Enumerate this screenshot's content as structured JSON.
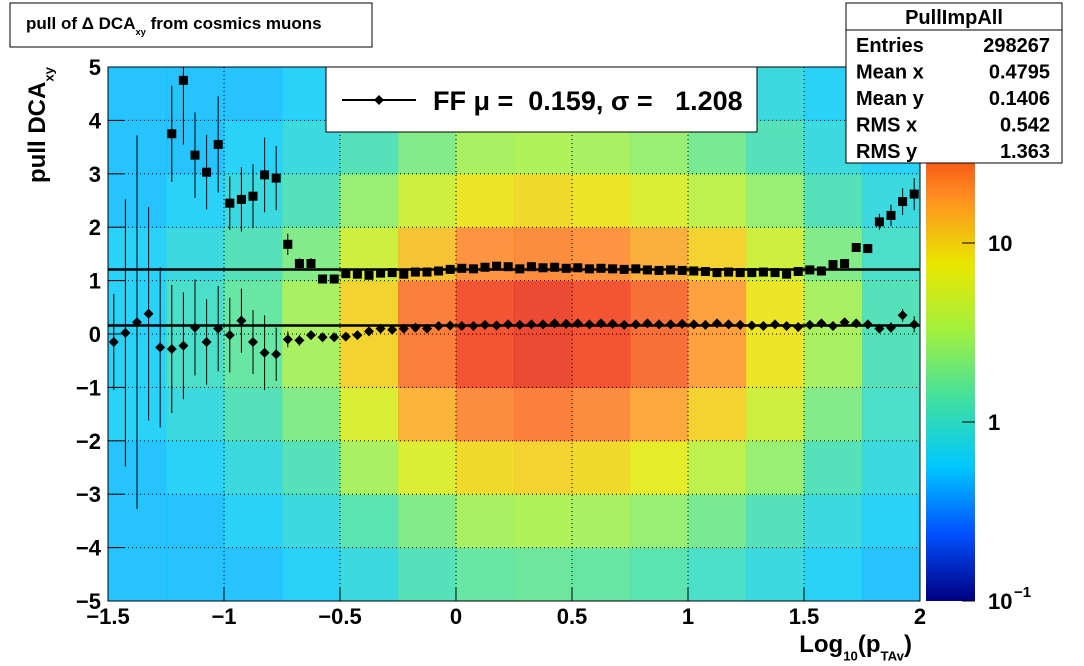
{
  "chart_data": {
    "type": "profile2d",
    "title": [
      {
        "text": "pull of Δ DCA"
      },
      {
        "text": "xy",
        "sub": true
      },
      {
        "text": " from cosmics muons"
      }
    ],
    "x_label": [
      {
        "text": "Log"
      },
      {
        "text": "10",
        "sub": true
      },
      {
        "text": "(p"
      },
      {
        "text": "TAv",
        "sub": true
      },
      {
        "text": ")"
      }
    ],
    "y_label": [
      {
        "text": "pull DCA"
      },
      {
        "text": "xy",
        "sub": true
      }
    ],
    "xlim": [
      -1.5,
      2
    ],
    "ylim": [
      -5,
      5
    ],
    "xticks": [
      {
        "value": -1.5,
        "label": "−1.5"
      },
      {
        "value": -1,
        "label": "−1"
      },
      {
        "value": -0.5,
        "label": "−0.5"
      },
      0,
      0.5,
      1,
      1.5,
      2
    ],
    "yticks": [
      {
        "value": -5,
        "label": "−5"
      },
      {
        "value": -4,
        "label": "−4"
      },
      {
        "value": -3,
        "label": "−3"
      },
      {
        "value": -2,
        "label": "−2"
      },
      {
        "value": -1,
        "label": "−1"
      },
      0,
      1,
      2,
      3,
      4,
      5
    ],
    "grid": true,
    "zlim": [
      0.1,
      100
    ],
    "zlog": true,
    "zticks": [
      {
        "value": 0.1,
        "label": "10",
        "sup": "−1"
      },
      1,
      10
    ],
    "palette": [
      "#00007f",
      "#0050ff",
      "#00c8ff",
      "#40e0a0",
      "#a0f040",
      "#e8e800",
      "#ff9020",
      "#f03010",
      "#800000"
    ],
    "heatmap": {
      "xbins": [
        -1.5,
        -1.25,
        -1,
        -0.75,
        -0.5,
        -0.25,
        0,
        0.25,
        0.5,
        0.75,
        1,
        1.25,
        1.5,
        1.75,
        2
      ],
      "ybins": [
        -5,
        -4,
        -3,
        -2,
        -1,
        0,
        1,
        2,
        3,
        4,
        5
      ],
      "z": [
        [
          0.5,
          0.5,
          0.5,
          0.6,
          0.8,
          1.2,
          1.5,
          1.6,
          1.5,
          1.3,
          1.0,
          0.8,
          0.6,
          0.5
        ],
        [
          0.5,
          0.5,
          0.6,
          0.8,
          1.3,
          2,
          3,
          3.2,
          3,
          2.5,
          1.8,
          1.2,
          0.8,
          0.6
        ],
        [
          0.5,
          0.6,
          0.8,
          1.2,
          3,
          6,
          9,
          10,
          9,
          7,
          4,
          2.5,
          1.2,
          0.8
        ],
        [
          0.6,
          0.8,
          1.2,
          2,
          6,
          14,
          22,
          25,
          22,
          16,
          10,
          5,
          2,
          1
        ],
        [
          0.6,
          1,
          1.5,
          3,
          10,
          25,
          40,
          45,
          40,
          30,
          18,
          8,
          3,
          1.2
        ],
        [
          0.6,
          1,
          1.5,
          3,
          10,
          25,
          40,
          45,
          40,
          30,
          18,
          8,
          3,
          1.2
        ],
        [
          0.6,
          0.8,
          1.2,
          2,
          5,
          12,
          20,
          22,
          20,
          15,
          10,
          5,
          2,
          1
        ],
        [
          0.5,
          0.6,
          0.8,
          1.2,
          2.5,
          5,
          8,
          9,
          8,
          6,
          4,
          2.5,
          1.2,
          0.8
        ],
        [
          0.5,
          0.5,
          0.6,
          0.8,
          1.2,
          2,
          3,
          3.2,
          3,
          2.5,
          1.8,
          1.2,
          0.8,
          0.6
        ],
        [
          0.5,
          0.5,
          0.5,
          0.6,
          0.8,
          1.2,
          1.5,
          1.6,
          1.5,
          1.3,
          1.0,
          0.8,
          0.6,
          0.5
        ]
      ]
    },
    "x": [
      -1.475,
      -1.425,
      -1.375,
      -1.325,
      -1.275,
      -1.225,
      -1.175,
      -1.125,
      -1.075,
      -1.025,
      -0.975,
      -0.925,
      -0.875,
      -0.825,
      -0.775,
      -0.725,
      -0.675,
      -0.625,
      -0.575,
      -0.525,
      -0.475,
      -0.425,
      -0.375,
      -0.325,
      -0.275,
      -0.225,
      -0.175,
      -0.125,
      -0.075,
      -0.025,
      0.025,
      0.075,
      0.125,
      0.175,
      0.225,
      0.275,
      0.325,
      0.375,
      0.425,
      0.475,
      0.525,
      0.575,
      0.625,
      0.675,
      0.725,
      0.775,
      0.825,
      0.875,
      0.925,
      0.975,
      1.025,
      1.075,
      1.125,
      1.175,
      1.225,
      1.275,
      1.325,
      1.375,
      1.425,
      1.475,
      1.525,
      1.575,
      1.625,
      1.675,
      1.725,
      1.775,
      1.825,
      1.875,
      1.925,
      1.975
    ],
    "series": [
      {
        "marker": "square",
        "color": "#000000",
        "values": [
          null,
          null,
          null,
          null,
          null,
          3.75,
          4.75,
          3.35,
          3.03,
          3.55,
          2.45,
          2.52,
          2.58,
          2.98,
          2.92,
          1.68,
          1.32,
          1.32,
          1.03,
          1.03,
          1.13,
          1.12,
          1.1,
          1.14,
          1.15,
          1.12,
          1.16,
          1.16,
          1.18,
          1.21,
          1.23,
          1.22,
          1.25,
          1.27,
          1.26,
          1.22,
          1.26,
          1.24,
          1.25,
          1.23,
          1.24,
          1.22,
          1.23,
          1.22,
          1.21,
          1.22,
          1.2,
          1.19,
          1.2,
          1.19,
          1.18,
          1.17,
          1.15,
          1.16,
          1.15,
          1.15,
          1.16,
          1.15,
          1.12,
          1.17,
          1.2,
          1.18,
          1.3,
          1.32,
          1.62,
          1.6,
          2.1,
          2.22,
          2.48,
          2.62
        ],
        "errors": [
          null,
          null,
          null,
          null,
          null,
          0.9,
          1.2,
          0.8,
          0.7,
          0.9,
          0.5,
          0.6,
          0.6,
          0.7,
          0.6,
          0.2,
          0.1,
          0.1,
          0.05,
          0.05,
          0.04,
          0.03,
          0.03,
          0.03,
          0.03,
          0.03,
          0.02,
          0.02,
          0.02,
          0.02,
          0.02,
          0.02,
          0.02,
          0.02,
          0.02,
          0.02,
          0.02,
          0.02,
          0.02,
          0.02,
          0.02,
          0.02,
          0.02,
          0.02,
          0.02,
          0.02,
          0.02,
          0.02,
          0.02,
          0.02,
          0.02,
          0.02,
          0.02,
          0.02,
          0.02,
          0.02,
          0.02,
          0.02,
          0.02,
          0.03,
          0.03,
          0.03,
          0.04,
          0.05,
          0.06,
          0.08,
          0.15,
          0.2,
          0.25,
          0.3
        ]
      },
      {
        "marker": "diamond",
        "color": "#000000",
        "values": [
          -0.15,
          0.02,
          0.22,
          0.38,
          -0.25,
          -0.28,
          -0.22,
          0.12,
          -0.15,
          0.1,
          -0.02,
          0.25,
          -0.15,
          -0.35,
          -0.38,
          -0.1,
          -0.12,
          -0.02,
          -0.06,
          -0.06,
          -0.05,
          -0.02,
          0.05,
          0.1,
          0.08,
          0.1,
          0.12,
          0.1,
          0.15,
          0.16,
          0.15,
          0.15,
          0.17,
          0.16,
          0.18,
          0.17,
          0.18,
          0.18,
          0.2,
          0.19,
          0.2,
          0.18,
          0.2,
          0.19,
          0.17,
          0.18,
          0.2,
          0.18,
          0.18,
          0.19,
          0.18,
          0.17,
          0.2,
          0.18,
          0.17,
          0.16,
          0.15,
          0.18,
          0.15,
          0.13,
          0.17,
          0.2,
          0.15,
          0.22,
          0.2,
          0.18,
          0.1,
          0.12,
          0.35,
          0.18
        ],
        "errors": [
          0.9,
          2.5,
          3.5,
          2.0,
          1.5,
          1.2,
          1.0,
          0.9,
          0.8,
          0.8,
          0.7,
          0.6,
          0.6,
          0.7,
          0.5,
          0.15,
          0.1,
          0.08,
          0.06,
          0.05,
          0.04,
          0.04,
          0.02,
          0.02,
          0.02,
          0.02,
          0.02,
          0.02,
          0.02,
          0.02,
          0.02,
          0.02,
          0.02,
          0.02,
          0.02,
          0.02,
          0.02,
          0.02,
          0.02,
          0.02,
          0.02,
          0.02,
          0.02,
          0.02,
          0.02,
          0.02,
          0.02,
          0.02,
          0.02,
          0.02,
          0.02,
          0.02,
          0.02,
          0.02,
          0.02,
          0.02,
          0.02,
          0.02,
          0.02,
          0.02,
          0.02,
          0.02,
          0.02,
          0.02,
          0.02,
          0.05,
          0.08,
          0.1,
          0.12,
          0.15
        ]
      }
    ],
    "fit_lines": [
      0.159,
      1.208
    ],
    "legend": "FF μ =  0.159, σ =   1.208",
    "stats": {
      "title": "PullImpAll",
      "rows": [
        [
          "Entries",
          298267
        ],
        [
          "Mean x",
          0.4795
        ],
        [
          "Mean y",
          0.1406
        ],
        [
          "RMS x",
          0.542
        ],
        [
          "RMS y",
          1.363
        ]
      ]
    }
  }
}
